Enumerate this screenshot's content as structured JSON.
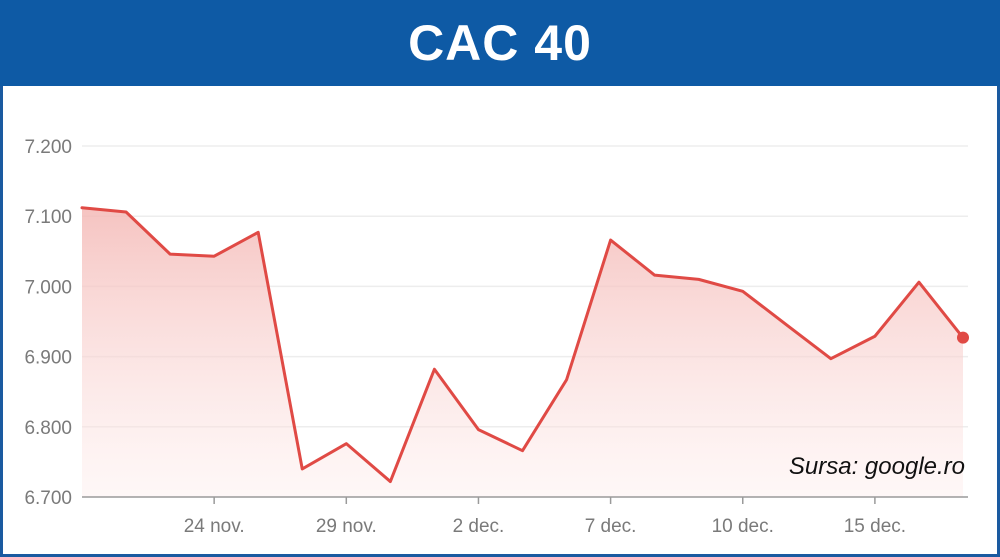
{
  "title": "CAC 40",
  "source": "Sursa: google.ro",
  "colors": {
    "title_bar": "#0e5aa5",
    "line": "#e04a45",
    "fill": "#f6c9c7",
    "grid": "#ededed",
    "axis": "#9a9a9a",
    "tick_text": "#7a7a7a"
  },
  "chart_data": {
    "type": "area",
    "title": "CAC 40",
    "xlabel": "",
    "ylabel": "",
    "ylim": [
      6700,
      7200
    ],
    "grid": true,
    "y_ticks": [
      {
        "value": 7200,
        "label": "7.200"
      },
      {
        "value": 7100,
        "label": "7.100"
      },
      {
        "value": 7000,
        "label": "7.000"
      },
      {
        "value": 6900,
        "label": "6.900"
      },
      {
        "value": 6800,
        "label": "6.800"
      },
      {
        "value": 6700,
        "label": "6.700"
      }
    ],
    "x_ticks": [
      {
        "index": 3,
        "label": "24 nov."
      },
      {
        "index": 6,
        "label": "29 nov."
      },
      {
        "index": 9,
        "label": "2 dec."
      },
      {
        "index": 12,
        "label": "7 dec."
      },
      {
        "index": 15,
        "label": "10 dec."
      },
      {
        "index": 18,
        "label": "15 dec."
      }
    ],
    "series": [
      {
        "values": [
          7112,
          7106,
          7046,
          7043,
          7077,
          6740,
          6776,
          6722,
          6882,
          6796,
          6766,
          6867,
          7066,
          7016,
          7010,
          6993,
          6945,
          6897,
          6929,
          7006,
          6927
        ]
      }
    ]
  }
}
